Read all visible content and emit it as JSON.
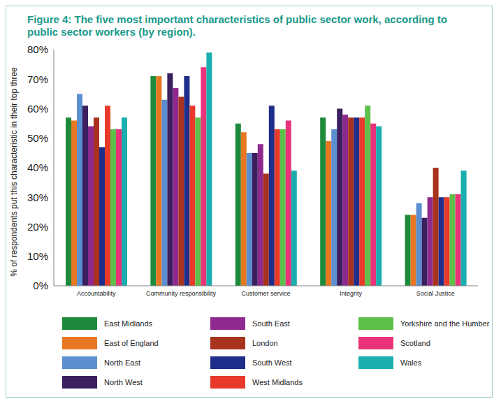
{
  "chart_data": {
    "type": "bar",
    "title": "Figure 4: The five most important characteristics of public sector work, according to public sector workers (by region).",
    "y_label": "% of respondents put this characteristic in their top three",
    "categories": [
      "Accountability",
      "Community responsibility",
      "Customer service",
      "Integrity",
      "Social Justice"
    ],
    "series": [
      {
        "name": "East Midlands",
        "color": "#1e8a3c",
        "values": [
          57,
          71,
          55,
          57,
          24
        ]
      },
      {
        "name": "East of England",
        "color": "#e87722",
        "values": [
          56,
          71,
          52,
          49,
          24
        ]
      },
      {
        "name": "North East",
        "color": "#5b8fd0",
        "values": [
          65,
          63,
          45,
          53,
          28
        ]
      },
      {
        "name": "North West",
        "color": "#3b1f5e",
        "values": [
          61,
          72,
          45,
          60,
          23
        ]
      },
      {
        "name": "South East",
        "color": "#8e2a8e",
        "values": [
          54,
          67,
          48,
          58,
          30
        ]
      },
      {
        "name": "London",
        "color": "#a8321e",
        "values": [
          57,
          64,
          38,
          57,
          40
        ]
      },
      {
        "name": "South West",
        "color": "#1f2e8a",
        "values": [
          47,
          71,
          61,
          57,
          30
        ]
      },
      {
        "name": "West Midlands",
        "color": "#e83a2a",
        "values": [
          61,
          61,
          53,
          57,
          30
        ]
      },
      {
        "name": "Yorkshire and the Humber",
        "color": "#5cc04a",
        "values": [
          53,
          57,
          53,
          61,
          31
        ]
      },
      {
        "name": "Scotland",
        "color": "#e8337a",
        "values": [
          53,
          74,
          56,
          55,
          31
        ]
      },
      {
        "name": "Wales",
        "color": "#1aaeae",
        "values": [
          57,
          79,
          39,
          54,
          39
        ]
      }
    ],
    "ylim": [
      0,
      80
    ],
    "yticks": [
      {
        "value": 0,
        "label": "0%"
      },
      {
        "value": 10,
        "label": "10%"
      },
      {
        "value": 20,
        "label": "20%"
      },
      {
        "value": 30,
        "label": "30%"
      },
      {
        "value": 40,
        "label": "40%"
      },
      {
        "value": 50,
        "label": "50%"
      },
      {
        "value": 60,
        "label": "60%"
      },
      {
        "value": 70,
        "label": "70%"
      },
      {
        "value": 80,
        "label": "80%"
      }
    ],
    "grid": false,
    "legend": "bottom"
  }
}
